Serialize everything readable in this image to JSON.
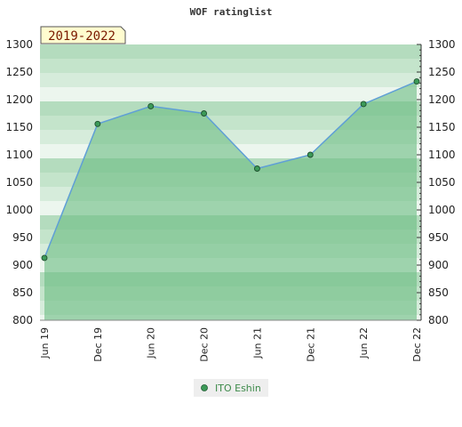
{
  "chart_data": {
    "type": "area",
    "title": "WOF ratinglist",
    "period_label": "2019-2022",
    "x": [
      "Jun 19",
      "Dec 19",
      "Jun 20",
      "Dec 20",
      "Jun 21",
      "Dec 21",
      "Jun 22",
      "Dec 22"
    ],
    "series": [
      {
        "name": "ITO Eshin",
        "values": [
          913,
          1156,
          1188,
          1175,
          1075,
          1100,
          1192,
          1233
        ]
      }
    ],
    "ylim": [
      800,
      1300
    ],
    "yticks": [
      800,
      850,
      900,
      950,
      1000,
      1050,
      1100,
      1150,
      1200,
      1250,
      1300
    ],
    "grid": true,
    "right_axis": true,
    "legend_position": "bottom-center",
    "colors": {
      "line": "#5f9fd6",
      "fill": "#6dbd85",
      "marker": "#3c9a58",
      "band_light": "#f0f8f1",
      "band_dark": "#a8d8b5"
    }
  }
}
